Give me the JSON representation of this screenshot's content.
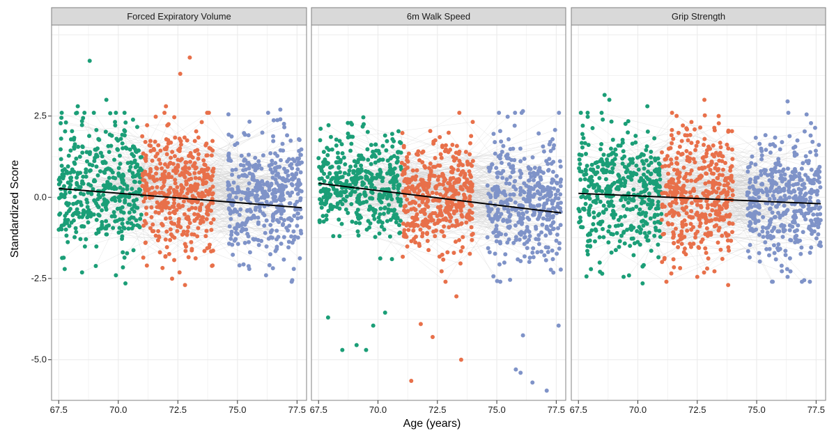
{
  "chart_data": {
    "type": "scatter",
    "xlabel": "Age (years)",
    "ylabel": "Standardized Score",
    "xlim": [
      67.2,
      77.9
    ],
    "ylim": [
      -6.25,
      5.3
    ],
    "x_ticks": [
      67.5,
      70.0,
      72.5,
      75.0,
      77.5
    ],
    "x_tick_labels": [
      "67.5",
      "70.0",
      "72.5",
      "75.0",
      "77.5"
    ],
    "y_ticks": [
      2.5,
      0.0,
      -2.5,
      -5.0
    ],
    "y_tick_labels": [
      "2.5",
      "0.0",
      "-2.5",
      "-5.0"
    ],
    "grid": true,
    "legend": "none",
    "colors": {
      "wave_1": "#1b9e77",
      "wave_2": "#e8704a",
      "wave_3": "#7f93c8",
      "trend": "#000000",
      "spaghetti": "#cccccc",
      "panel_background": "#ffffff",
      "grid": "#ebebeb",
      "strip": "#d9d9d9"
    },
    "panels": [
      {
        "title": "Forced Expiratory Volume",
        "trend": {
          "x": [
            67.5,
            77.7
          ],
          "y": [
            0.27,
            -0.32
          ]
        },
        "waves": [
          {
            "x_range": [
              67.5,
              71.0
            ],
            "y_center": 0.3,
            "y_sd": 1.0,
            "notable": [
              [
                68.8,
                4.2
              ],
              [
                69.5,
                3.0
              ],
              [
                69.9,
                2.6
              ],
              [
                68.3,
                2.8
              ],
              [
                69.9,
                -2.4
              ],
              [
                70.3,
                -2.65
              ]
            ]
          },
          {
            "x_range": [
              71.0,
              74.0
            ],
            "y_center": 0.15,
            "y_sd": 1.0,
            "notable": [
              [
                72.6,
                3.8
              ],
              [
                73.0,
                4.3
              ],
              [
                72.0,
                2.8
              ],
              [
                72.8,
                -2.7
              ],
              [
                71.2,
                -2.1
              ]
            ]
          },
          {
            "x_range": [
              74.6,
              77.7
            ],
            "y_center": -0.05,
            "y_sd": 0.95,
            "notable": [
              [
                76.8,
                2.7
              ],
              [
                76.8,
                2.4
              ],
              [
                77.3,
                -2.55
              ],
              [
                76.2,
                -2.4
              ]
            ]
          }
        ]
      },
      {
        "title": "6m Walk Speed",
        "trend": {
          "x": [
            67.5,
            77.7
          ],
          "y": [
            0.43,
            -0.48
          ]
        },
        "waves": [
          {
            "x_range": [
              67.5,
              71.0
            ],
            "y_center": 0.45,
            "y_sd": 0.75,
            "notable": [
              [
                69.4,
                2.25
              ],
              [
                70.3,
                1.9
              ],
              [
                67.9,
                -3.7
              ],
              [
                68.5,
                -4.7
              ],
              [
                69.5,
                -4.7
              ],
              [
                69.1,
                -4.55
              ],
              [
                69.8,
                -3.95
              ],
              [
                70.3,
                -3.55
              ]
            ]
          },
          {
            "x_range": [
              71.0,
              74.0
            ],
            "y_center": 0.05,
            "y_sd": 0.85,
            "notable": [
              [
                72.6,
                1.85
              ],
              [
                71.8,
                -3.9
              ],
              [
                72.3,
                -4.3
              ],
              [
                71.4,
                -5.65
              ],
              [
                73.5,
                -5.0
              ],
              [
                73.3,
                -3.05
              ]
            ]
          },
          {
            "x_range": [
              74.6,
              77.7
            ],
            "y_center": -0.15,
            "y_sd": 0.95,
            "notable": [
              [
                76.1,
                2.65
              ],
              [
                75.5,
                1.2
              ],
              [
                75.8,
                -5.3
              ],
              [
                76.0,
                -5.4
              ],
              [
                76.5,
                -5.7
              ],
              [
                77.1,
                -5.95
              ],
              [
                77.6,
                -3.95
              ],
              [
                76.1,
                -4.25
              ]
            ]
          }
        ]
      },
      {
        "title": "Grip Strength",
        "trend": {
          "x": [
            67.5,
            77.7
          ],
          "y": [
            0.12,
            -0.2
          ]
        },
        "waves": [
          {
            "x_range": [
              67.5,
              71.0
            ],
            "y_center": 0.2,
            "y_sd": 1.0,
            "notable": [
              [
                68.6,
                3.15
              ],
              [
                68.8,
                3.0
              ],
              [
                70.4,
                2.8
              ],
              [
                68.5,
                -2.35
              ],
              [
                69.4,
                -2.45
              ],
              [
                70.2,
                -2.65
              ]
            ]
          },
          {
            "x_range": [
              71.0,
              74.0
            ],
            "y_center": 0.1,
            "y_sd": 1.0,
            "notable": [
              [
                72.8,
                3.0
              ],
              [
                73.4,
                2.5
              ],
              [
                72.5,
                -2.45
              ],
              [
                73.8,
                -2.7
              ]
            ]
          },
          {
            "x_range": [
              74.6,
              77.7
            ],
            "y_center": -0.05,
            "y_sd": 0.95,
            "notable": [
              [
                76.3,
                2.95
              ],
              [
                77.1,
                2.55
              ],
              [
                77.0,
                -2.55
              ],
              [
                76.3,
                -2.45
              ]
            ]
          }
        ]
      }
    ]
  }
}
